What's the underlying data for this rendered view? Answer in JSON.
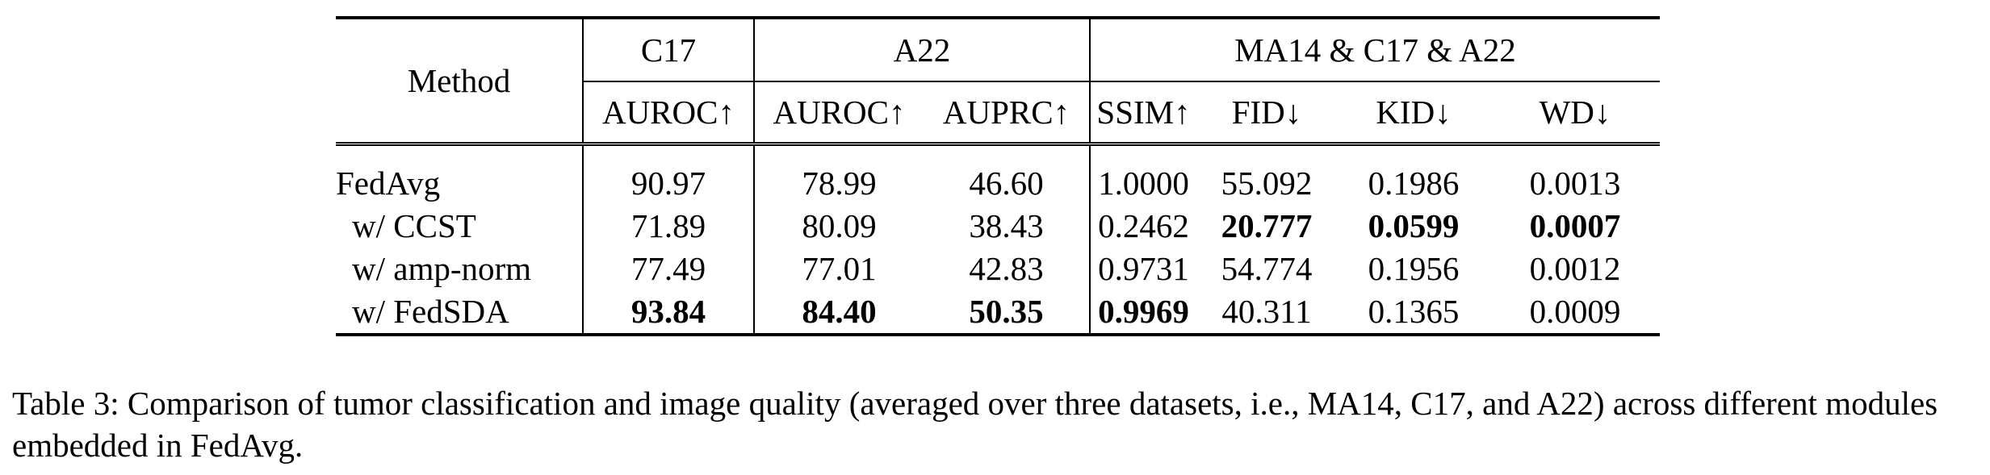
{
  "table": {
    "header": {
      "method": "Method",
      "groups": [
        "C17",
        "A22",
        "MA14 & C17 & A22"
      ],
      "metrics": [
        "AUROC↑",
        "AUROC↑",
        "AUPRC↑",
        "SSIM↑",
        "FID↓",
        "KID↓",
        "WD↓"
      ]
    },
    "rows": [
      {
        "method": "FedAvg",
        "values": [
          "90.97",
          "78.99",
          "46.60",
          "1.0000",
          "55.092",
          "0.1986",
          "0.0013"
        ]
      },
      {
        "method": "w/ CCST",
        "values": [
          "71.89",
          "80.09",
          "38.43",
          "0.2462",
          "20.777",
          "0.0599",
          "0.0007"
        ]
      },
      {
        "method": "w/ amp-norm",
        "values": [
          "77.49",
          "77.01",
          "42.83",
          "0.9731",
          "54.774",
          "0.1956",
          "0.0012"
        ]
      },
      {
        "method": "w/ FedSDA",
        "values": [
          "93.84",
          "84.40",
          "50.35",
          "0.9969",
          "40.311",
          "0.1365",
          "0.0009"
        ]
      }
    ]
  },
  "caption": "Table 3: Comparison of tumor classification and image quality (averaged over three datasets, i.e., MA14, C17, and A22) across different modules embedded in FedAvg."
}
